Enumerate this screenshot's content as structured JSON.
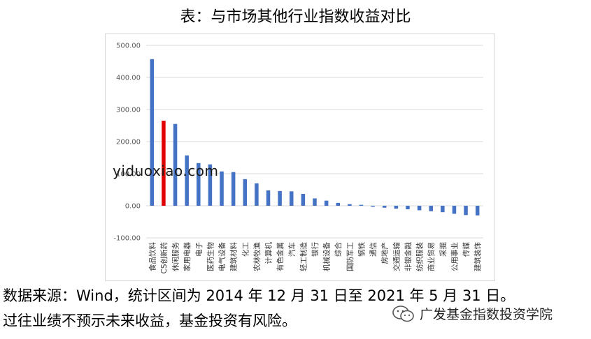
{
  "title": "表：与市场其他行业指数收益对比",
  "watermark": "yiduoxiao.com",
  "source_note": "数据来源：Wind，统计区间为 2014 年 12 月 31 日至 2021 年 5 月 31 日。",
  "disclaimer": "过往业绩不预示未来收益，基金投资有风险。",
  "brand": {
    "text": "广发基金指数投资学院",
    "icon": "wechat-icon"
  },
  "colors": {
    "default_bar": "#4472C4",
    "highlight_bar": "#E00000",
    "grid": "#d9d9d9"
  },
  "chart_data": {
    "type": "bar",
    "title": "",
    "xlabel": "",
    "ylabel": "",
    "ylim": [
      -100,
      500
    ],
    "yticks": [
      "500.00",
      "400.00",
      "300.00",
      "200.00",
      "100.00",
      "0.00",
      "-100.00"
    ],
    "ytick_values": [
      500,
      400,
      300,
      200,
      100,
      0,
      -100
    ],
    "grid": true,
    "highlight": "CS创新药",
    "categories": [
      "食品饮料",
      "CS创新药",
      "休闲服务",
      "家用电器",
      "电子",
      "医药生物",
      "电气设备",
      "建筑材料",
      "化工",
      "农林牧渔",
      "计算机",
      "有色金属",
      "汽车",
      "轻工制造",
      "银行",
      "机械设备",
      "综合",
      "国防军工",
      "钢铁",
      "通信",
      "房地产",
      "交通运输",
      "非银金融",
      "纺织服装",
      "商业贸易",
      "采掘",
      "公用事业",
      "传媒",
      "建筑装饰"
    ],
    "values": [
      457,
      265,
      255,
      157,
      133,
      129,
      107,
      105,
      83,
      70,
      48,
      46,
      45,
      37,
      23,
      16,
      9,
      5,
      3,
      -3,
      -6,
      -9,
      -11,
      -14,
      -17,
      -20,
      -25,
      -29,
      -30
    ]
  }
}
